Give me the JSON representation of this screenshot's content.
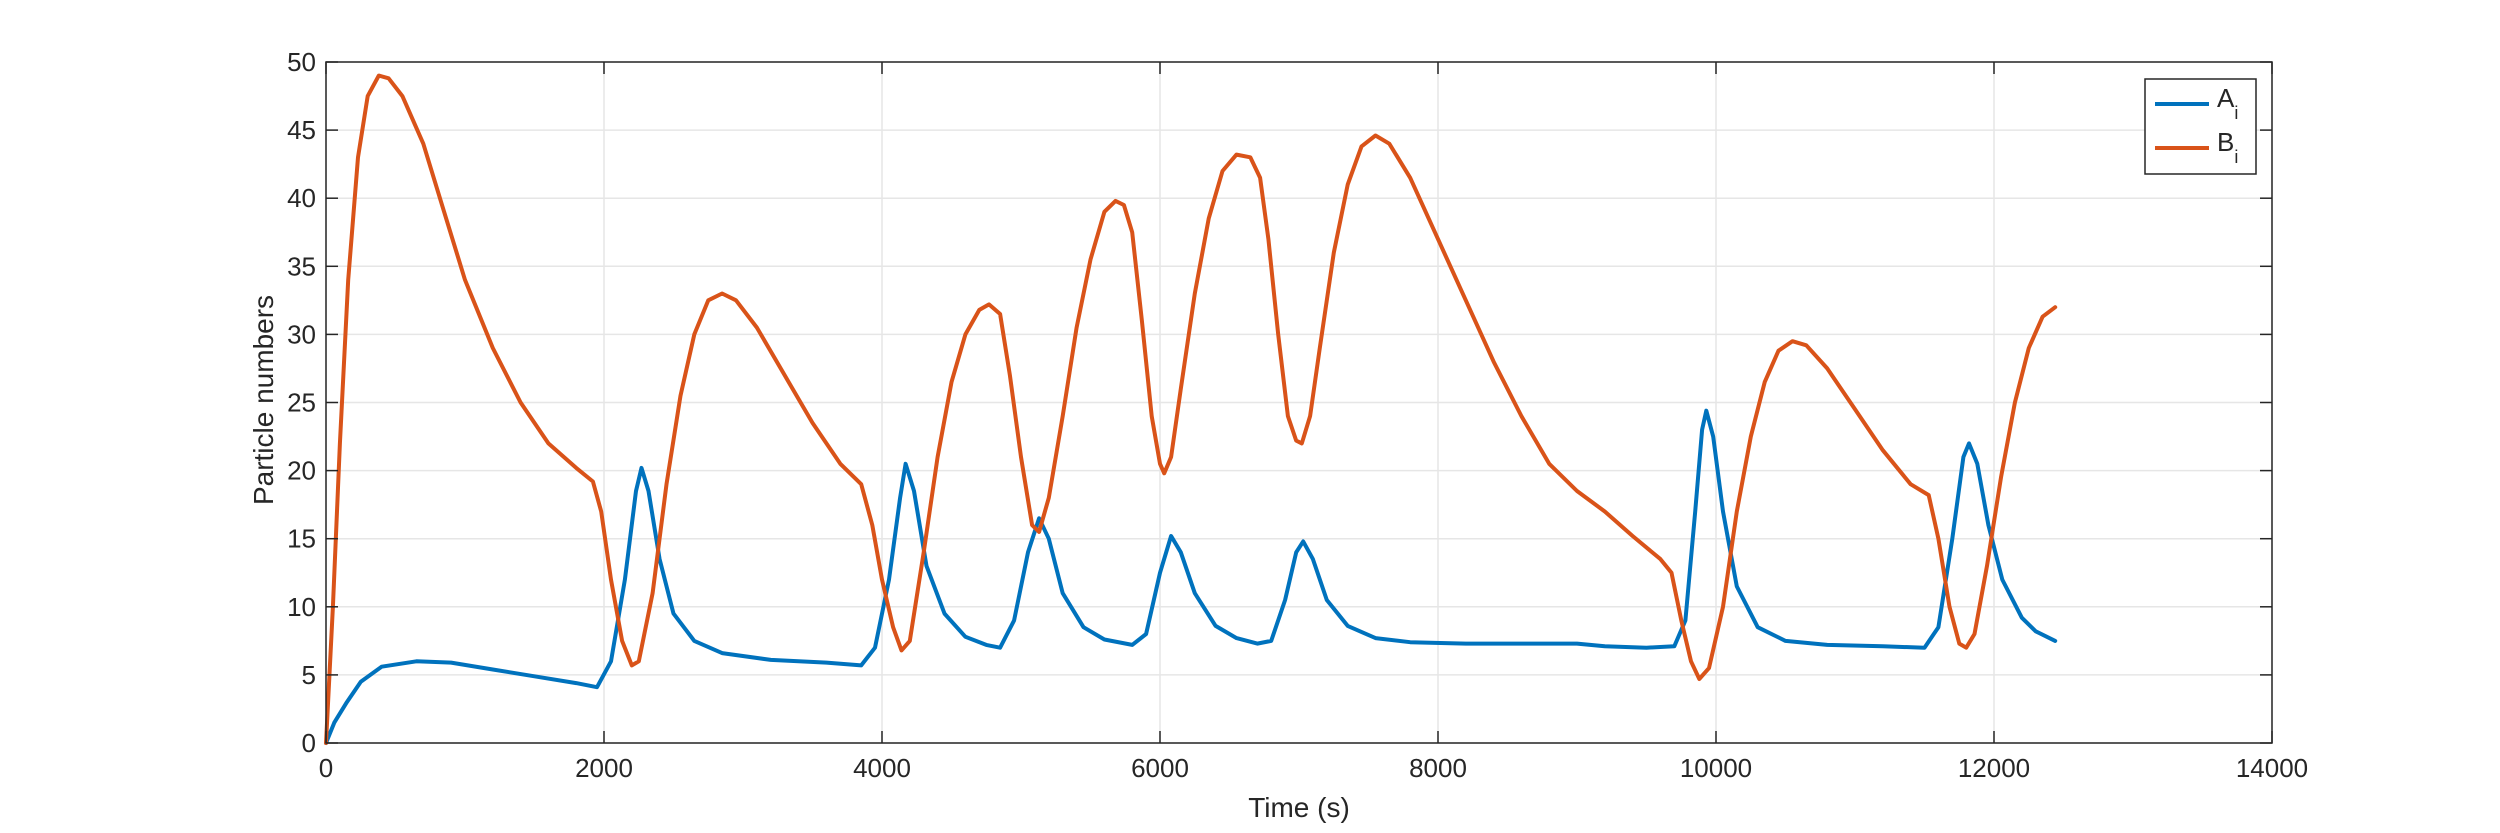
{
  "chart_data": {
    "type": "line",
    "xlabel": "Time (s)",
    "ylabel": "Particle numbers",
    "xlim": [
      0,
      14000
    ],
    "ylim": [
      0,
      50
    ],
    "xticks": [
      0,
      2000,
      4000,
      6000,
      8000,
      10000,
      12000,
      14000
    ],
    "yticks": [
      0,
      5,
      10,
      15,
      20,
      25,
      30,
      35,
      40,
      45,
      50
    ],
    "grid": true,
    "legend_position": "top-right",
    "series": [
      {
        "name": "A",
        "subscript": "i",
        "color": "#0072BD",
        "points": [
          [
            0,
            0
          ],
          [
            60,
            1.5
          ],
          [
            150,
            3
          ],
          [
            250,
            4.5
          ],
          [
            400,
            5.6
          ],
          [
            650,
            6.0
          ],
          [
            900,
            5.9
          ],
          [
            1200,
            5.4
          ],
          [
            1500,
            4.9
          ],
          [
            1800,
            4.4
          ],
          [
            1950,
            4.1
          ],
          [
            2050,
            6
          ],
          [
            2150,
            12
          ],
          [
            2230,
            18.5
          ],
          [
            2270,
            20.2
          ],
          [
            2320,
            18.5
          ],
          [
            2400,
            13.5
          ],
          [
            2500,
            9.5
          ],
          [
            2650,
            7.5
          ],
          [
            2850,
            6.6
          ],
          [
            3200,
            6.1
          ],
          [
            3600,
            5.9
          ],
          [
            3850,
            5.7
          ],
          [
            3950,
            7
          ],
          [
            4050,
            12
          ],
          [
            4130,
            18
          ],
          [
            4170,
            20.5
          ],
          [
            4230,
            18.5
          ],
          [
            4320,
            13
          ],
          [
            4450,
            9.5
          ],
          [
            4600,
            7.8
          ],
          [
            4750,
            7.2
          ],
          [
            4850,
            7.0
          ],
          [
            4950,
            9
          ],
          [
            5050,
            14
          ],
          [
            5130,
            16.5
          ],
          [
            5200,
            15
          ],
          [
            5300,
            11
          ],
          [
            5450,
            8.5
          ],
          [
            5600,
            7.6
          ],
          [
            5800,
            7.2
          ],
          [
            5900,
            8
          ],
          [
            6000,
            12.5
          ],
          [
            6080,
            15.2
          ],
          [
            6150,
            14
          ],
          [
            6250,
            11
          ],
          [
            6400,
            8.6
          ],
          [
            6550,
            7.7
          ],
          [
            6700,
            7.3
          ],
          [
            6800,
            7.5
          ],
          [
            6900,
            10.5
          ],
          [
            6980,
            14
          ],
          [
            7030,
            14.8
          ],
          [
            7100,
            13.5
          ],
          [
            7200,
            10.5
          ],
          [
            7350,
            8.6
          ],
          [
            7550,
            7.7
          ],
          [
            7800,
            7.4
          ],
          [
            8200,
            7.3
          ],
          [
            8600,
            7.3
          ],
          [
            9000,
            7.3
          ],
          [
            9200,
            7.1
          ],
          [
            9500,
            7.0
          ],
          [
            9700,
            7.1
          ],
          [
            9780,
            9
          ],
          [
            9850,
            17
          ],
          [
            9900,
            23
          ],
          [
            9930,
            24.4
          ],
          [
            9980,
            22.5
          ],
          [
            10050,
            17
          ],
          [
            10150,
            11.5
          ],
          [
            10300,
            8.5
          ],
          [
            10500,
            7.5
          ],
          [
            10800,
            7.2
          ],
          [
            11200,
            7.1
          ],
          [
            11500,
            7.0
          ],
          [
            11600,
            8.5
          ],
          [
            11700,
            15
          ],
          [
            11780,
            21
          ],
          [
            11820,
            22
          ],
          [
            11880,
            20.5
          ],
          [
            11960,
            16
          ],
          [
            12060,
            12
          ],
          [
            12200,
            9.2
          ],
          [
            12300,
            8.2
          ],
          [
            12440,
            7.5
          ]
        ]
      },
      {
        "name": "B",
        "subscript": "i",
        "color": "#D95319",
        "points": [
          [
            0,
            0
          ],
          [
            50,
            10
          ],
          [
            100,
            22
          ],
          [
            160,
            34
          ],
          [
            230,
            43
          ],
          [
            300,
            47.5
          ],
          [
            380,
            49
          ],
          [
            450,
            48.8
          ],
          [
            550,
            47.5
          ],
          [
            700,
            44
          ],
          [
            850,
            39
          ],
          [
            1000,
            34
          ],
          [
            1200,
            29
          ],
          [
            1400,
            25
          ],
          [
            1600,
            22
          ],
          [
            1800,
            20.2
          ],
          [
            1920,
            19.2
          ],
          [
            1980,
            17
          ],
          [
            2050,
            12
          ],
          [
            2130,
            7.5
          ],
          [
            2200,
            5.7
          ],
          [
            2250,
            6
          ],
          [
            2350,
            11
          ],
          [
            2450,
            19
          ],
          [
            2550,
            25.5
          ],
          [
            2650,
            30
          ],
          [
            2750,
            32.5
          ],
          [
            2850,
            33
          ],
          [
            2950,
            32.5
          ],
          [
            3100,
            30.5
          ],
          [
            3300,
            27
          ],
          [
            3500,
            23.5
          ],
          [
            3700,
            20.5
          ],
          [
            3850,
            19
          ],
          [
            3930,
            16
          ],
          [
            4000,
            12
          ],
          [
            4080,
            8.5
          ],
          [
            4140,
            6.8
          ],
          [
            4200,
            7.5
          ],
          [
            4300,
            14
          ],
          [
            4400,
            21
          ],
          [
            4500,
            26.5
          ],
          [
            4600,
            30
          ],
          [
            4700,
            31.8
          ],
          [
            4770,
            32.2
          ],
          [
            4850,
            31.5
          ],
          [
            4920,
            27
          ],
          [
            5000,
            21
          ],
          [
            5080,
            16
          ],
          [
            5130,
            15.5
          ],
          [
            5200,
            18
          ],
          [
            5300,
            24
          ],
          [
            5400,
            30.5
          ],
          [
            5500,
            35.5
          ],
          [
            5600,
            39
          ],
          [
            5680,
            39.8
          ],
          [
            5740,
            39.5
          ],
          [
            5800,
            37.5
          ],
          [
            5870,
            31
          ],
          [
            5940,
            24
          ],
          [
            6000,
            20.5
          ],
          [
            6030,
            19.8
          ],
          [
            6080,
            21
          ],
          [
            6150,
            26
          ],
          [
            6250,
            33
          ],
          [
            6350,
            38.5
          ],
          [
            6450,
            42
          ],
          [
            6550,
            43.2
          ],
          [
            6650,
            43
          ],
          [
            6720,
            41.5
          ],
          [
            6780,
            37
          ],
          [
            6850,
            30
          ],
          [
            6920,
            24
          ],
          [
            6980,
            22.2
          ],
          [
            7020,
            22
          ],
          [
            7080,
            24
          ],
          [
            7150,
            29
          ],
          [
            7250,
            36
          ],
          [
            7350,
            41
          ],
          [
            7450,
            43.8
          ],
          [
            7550,
            44.6
          ],
          [
            7650,
            44
          ],
          [
            7800,
            41.5
          ],
          [
            8000,
            37
          ],
          [
            8200,
            32.5
          ],
          [
            8400,
            28
          ],
          [
            8600,
            24
          ],
          [
            8800,
            20.5
          ],
          [
            9000,
            18.5
          ],
          [
            9200,
            17
          ],
          [
            9400,
            15.2
          ],
          [
            9600,
            13.5
          ],
          [
            9680,
            12.5
          ],
          [
            9750,
            9
          ],
          [
            9820,
            6
          ],
          [
            9880,
            4.7
          ],
          [
            9950,
            5.5
          ],
          [
            10050,
            10
          ],
          [
            10150,
            17
          ],
          [
            10250,
            22.5
          ],
          [
            10350,
            26.5
          ],
          [
            10450,
            28.8
          ],
          [
            10550,
            29.5
          ],
          [
            10650,
            29.2
          ],
          [
            10800,
            27.5
          ],
          [
            11000,
            24.5
          ],
          [
            11200,
            21.5
          ],
          [
            11400,
            19
          ],
          [
            11530,
            18.2
          ],
          [
            11600,
            15
          ],
          [
            11680,
            10
          ],
          [
            11750,
            7.3
          ],
          [
            11800,
            7
          ],
          [
            11860,
            8
          ],
          [
            11950,
            13
          ],
          [
            12050,
            19.5
          ],
          [
            12150,
            25
          ],
          [
            12250,
            29
          ],
          [
            12350,
            31.3
          ],
          [
            12440,
            32
          ]
        ]
      }
    ]
  }
}
